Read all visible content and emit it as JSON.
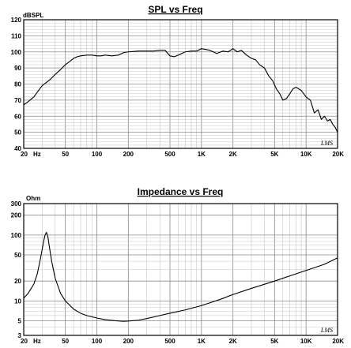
{
  "chart_data": [
    {
      "type": "line",
      "title": "SPL vs Freq",
      "ylabel": "dBSPL",
      "xlabel": "",
      "xscale": "log",
      "xlim": [
        20,
        20000
      ],
      "ylim": [
        40,
        120
      ],
      "grid": true,
      "x_ticks": [
        {
          "value": 20,
          "label": "20"
        },
        {
          "value": 50,
          "label": "50"
        },
        {
          "value": 100,
          "label": "100"
        },
        {
          "value": 200,
          "label": "200"
        },
        {
          "value": 500,
          "label": "500"
        },
        {
          "value": 1000,
          "label": "1K"
        },
        {
          "value": 2000,
          "label": "2K"
        },
        {
          "value": 5000,
          "label": "5K"
        },
        {
          "value": 10000,
          "label": "10K"
        },
        {
          "value": 20000,
          "label": "20K"
        }
      ],
      "x_unit": "Hz",
      "y_ticks": [
        40,
        50,
        60,
        70,
        80,
        90,
        100,
        110,
        120
      ],
      "logo": "LMS",
      "series": [
        {
          "x": [
            20,
            22,
            25,
            27,
            30,
            33,
            36,
            40,
            45,
            50,
            55,
            60,
            65,
            70,
            80,
            90,
            100,
            110,
            120,
            140,
            160,
            180,
            200,
            250,
            300,
            350,
            400,
            450,
            500,
            550,
            600,
            700,
            800,
            900,
            1000,
            1100,
            1200,
            1400,
            1600,
            1800,
            2000,
            2200,
            2400,
            2700,
            3000,
            3300,
            3600,
            4000,
            4400,
            4800,
            5200,
            5600,
            6000,
            6500,
            7000,
            7500,
            8000,
            9000,
            10000,
            11000,
            12000,
            13000,
            14000,
            15000,
            16000,
            17000,
            18000,
            19000,
            20000
          ],
          "values": [
            67,
            69,
            72,
            75,
            79,
            81,
            83,
            86,
            89,
            92,
            94,
            96,
            97,
            97.5,
            98,
            98,
            97.5,
            97.5,
            98,
            97.5,
            98,
            99.5,
            100,
            100.5,
            100.5,
            100.5,
            101,
            101,
            97.5,
            97,
            98,
            100,
            100.5,
            100.5,
            102,
            101.5,
            101,
            99,
            100.5,
            100,
            102,
            100,
            101,
            98,
            96,
            95,
            92,
            90,
            85,
            82,
            77,
            74,
            70,
            71,
            74,
            77,
            78,
            76,
            72,
            70,
            62,
            64,
            58,
            60,
            57,
            58,
            55,
            53,
            50
          ]
        }
      ]
    },
    {
      "type": "line",
      "title": "Impedance vs Freq",
      "ylabel": "Ohm",
      "xlabel": "",
      "xscale": "log",
      "yscale": "log",
      "xlim": [
        20,
        20000
      ],
      "ylim": [
        3,
        300
      ],
      "grid": true,
      "x_ticks": [
        {
          "value": 20,
          "label": "20"
        },
        {
          "value": 50,
          "label": "50"
        },
        {
          "value": 100,
          "label": "100"
        },
        {
          "value": 200,
          "label": "200"
        },
        {
          "value": 500,
          "label": "500"
        },
        {
          "value": 1000,
          "label": "1K"
        },
        {
          "value": 2000,
          "label": "2K"
        },
        {
          "value": 5000,
          "label": "5K"
        },
        {
          "value": 10000,
          "label": "10K"
        },
        {
          "value": 20000,
          "label": "20K"
        }
      ],
      "x_unit": "Hz",
      "y_ticks": [
        3,
        5,
        10,
        20,
        50,
        100,
        200,
        300
      ],
      "logo": "LMS",
      "series": [
        {
          "x": [
            20,
            22,
            25,
            27,
            29,
            31,
            32,
            33,
            34,
            35,
            37,
            40,
            45,
            50,
            60,
            70,
            80,
            100,
            120,
            150,
            180,
            200,
            250,
            300,
            400,
            500,
            700,
            1000,
            1500,
            2000,
            3000,
            5000,
            7000,
            10000,
            15000,
            20000
          ],
          "values": [
            11,
            13,
            18,
            26,
            45,
            80,
            100,
            110,
            95,
            70,
            40,
            22,
            13,
            10,
            7.5,
            6.5,
            6,
            5.5,
            5.2,
            5,
            4.9,
            4.95,
            5.1,
            5.4,
            6,
            6.5,
            7.3,
            8.5,
            10.5,
            12.5,
            15.5,
            20,
            24,
            29,
            36,
            45
          ]
        }
      ]
    }
  ]
}
